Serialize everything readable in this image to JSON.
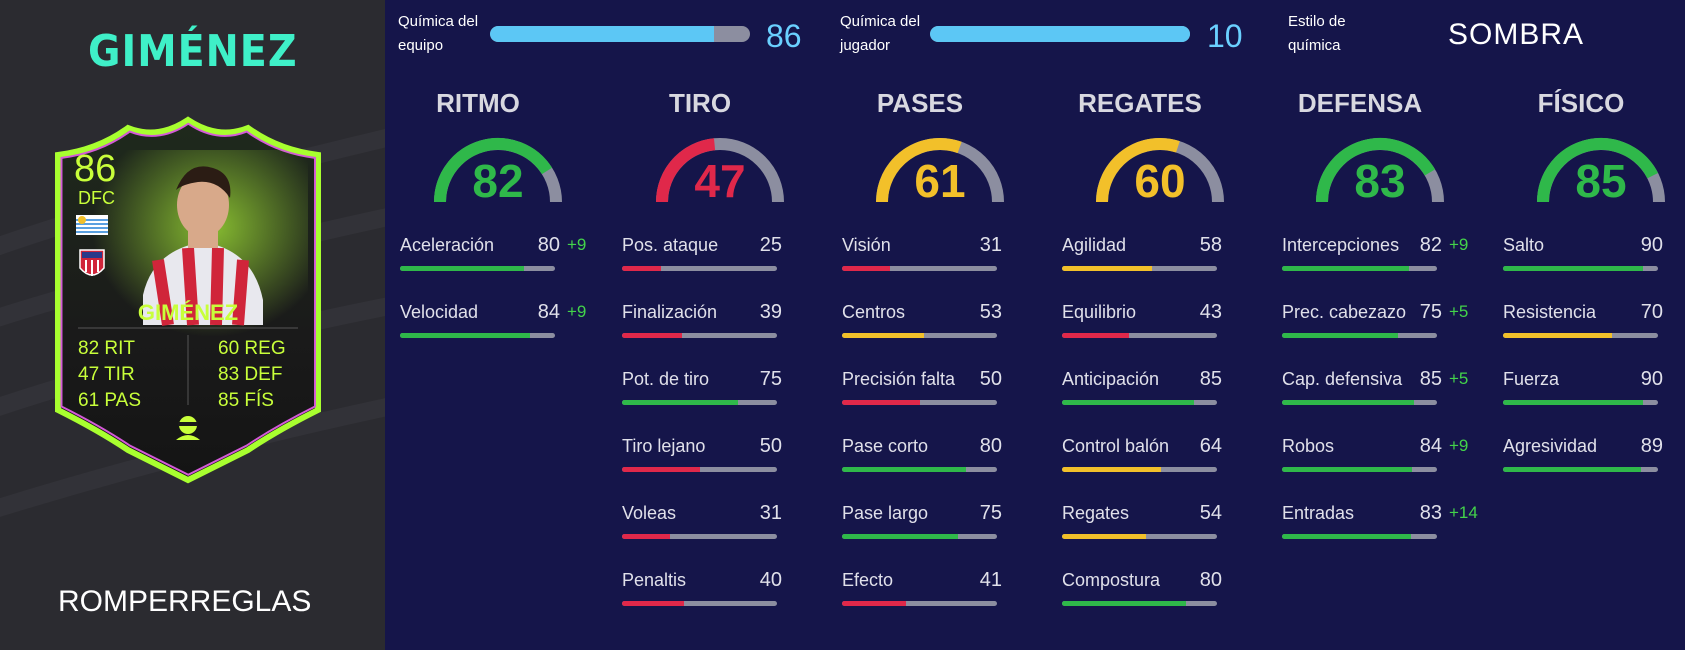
{
  "player": {
    "name_top": "GIMÉNEZ",
    "card_name": "GIMÉNEZ",
    "rating": "86",
    "position": "DFC",
    "rarity": "ROMPERREGLAS",
    "card_stats": [
      {
        "value": "82",
        "abbr": "RIT"
      },
      {
        "value": "47",
        "abbr": "TIR"
      },
      {
        "value": "61",
        "abbr": "PAS"
      },
      {
        "value": "60",
        "abbr": "REG"
      },
      {
        "value": "83",
        "abbr": "DEF"
      },
      {
        "value": "85",
        "abbr": "FÍS"
      }
    ]
  },
  "chemistry": {
    "team_label_1": "Química del",
    "team_label_2": "equipo",
    "team_value": "86",
    "team_fill": 0.86,
    "player_label_1": "Química del",
    "player_label_2": "jugador",
    "player_value": "10",
    "player_fill": 1.0,
    "style_label_1": "Estilo de",
    "style_label_2": "química",
    "style_value": "SOMBRA"
  },
  "colors": {
    "green": "#2fb84a",
    "red": "#e0284a",
    "yellow": "#f2c02a",
    "grey": "#8c8ea0",
    "accent_blue": "#5cc7f5"
  },
  "categories": [
    {
      "title": "RITMO",
      "value": "82",
      "color": "green",
      "stats": [
        {
          "label": "Aceleración",
          "value": "80",
          "boost": "+9",
          "color": "green"
        },
        {
          "label": "Velocidad",
          "value": "84",
          "boost": "+9",
          "color": "green"
        }
      ]
    },
    {
      "title": "TIRO",
      "value": "47",
      "color": "red",
      "stats": [
        {
          "label": "Pos. ataque",
          "value": "25",
          "color": "red"
        },
        {
          "label": "Finalización",
          "value": "39",
          "color": "red"
        },
        {
          "label": "Pot. de tiro",
          "value": "75",
          "color": "green"
        },
        {
          "label": "Tiro lejano",
          "value": "50",
          "color": "red"
        },
        {
          "label": "Voleas",
          "value": "31",
          "color": "red"
        },
        {
          "label": "Penaltis",
          "value": "40",
          "color": "red"
        }
      ]
    },
    {
      "title": "PASES",
      "value": "61",
      "color": "yellow",
      "stats": [
        {
          "label": "Visión",
          "value": "31",
          "color": "red"
        },
        {
          "label": "Centros",
          "value": "53",
          "color": "yellow"
        },
        {
          "label": "Precisión falta",
          "value": "50",
          "color": "red"
        },
        {
          "label": "Pase corto",
          "value": "80",
          "color": "green"
        },
        {
          "label": "Pase largo",
          "value": "75",
          "color": "green"
        },
        {
          "label": "Efecto",
          "value": "41",
          "color": "red"
        }
      ]
    },
    {
      "title": "REGATES",
      "value": "60",
      "color": "yellow",
      "stats": [
        {
          "label": "Agilidad",
          "value": "58",
          "color": "yellow"
        },
        {
          "label": "Equilibrio",
          "value": "43",
          "color": "red"
        },
        {
          "label": "Anticipación",
          "value": "85",
          "color": "green"
        },
        {
          "label": "Control balón",
          "value": "64",
          "color": "yellow"
        },
        {
          "label": "Regates",
          "value": "54",
          "color": "yellow"
        },
        {
          "label": "Compostura",
          "value": "80",
          "color": "green"
        }
      ]
    },
    {
      "title": "DEFENSA",
      "value": "83",
      "color": "green",
      "stats": [
        {
          "label": "Intercepciones",
          "value": "82",
          "boost": "+9",
          "color": "green"
        },
        {
          "label": "Prec. cabezazo",
          "value": "75",
          "boost": "+5",
          "color": "green"
        },
        {
          "label": "Cap. defensiva",
          "value": "85",
          "boost": "+5",
          "color": "green"
        },
        {
          "label": "Robos",
          "value": "84",
          "boost": "+9",
          "color": "green"
        },
        {
          "label": "Entradas",
          "value": "83",
          "boost": "+14",
          "color": "green"
        }
      ]
    },
    {
      "title": "FÍSICO",
      "value": "85",
      "color": "green",
      "stats": [
        {
          "label": "Salto",
          "value": "90",
          "color": "green"
        },
        {
          "label": "Resistencia",
          "value": "70",
          "color": "yellow"
        },
        {
          "label": "Fuerza",
          "value": "90",
          "color": "green"
        },
        {
          "label": "Agresividad",
          "value": "89",
          "color": "green"
        }
      ]
    }
  ]
}
